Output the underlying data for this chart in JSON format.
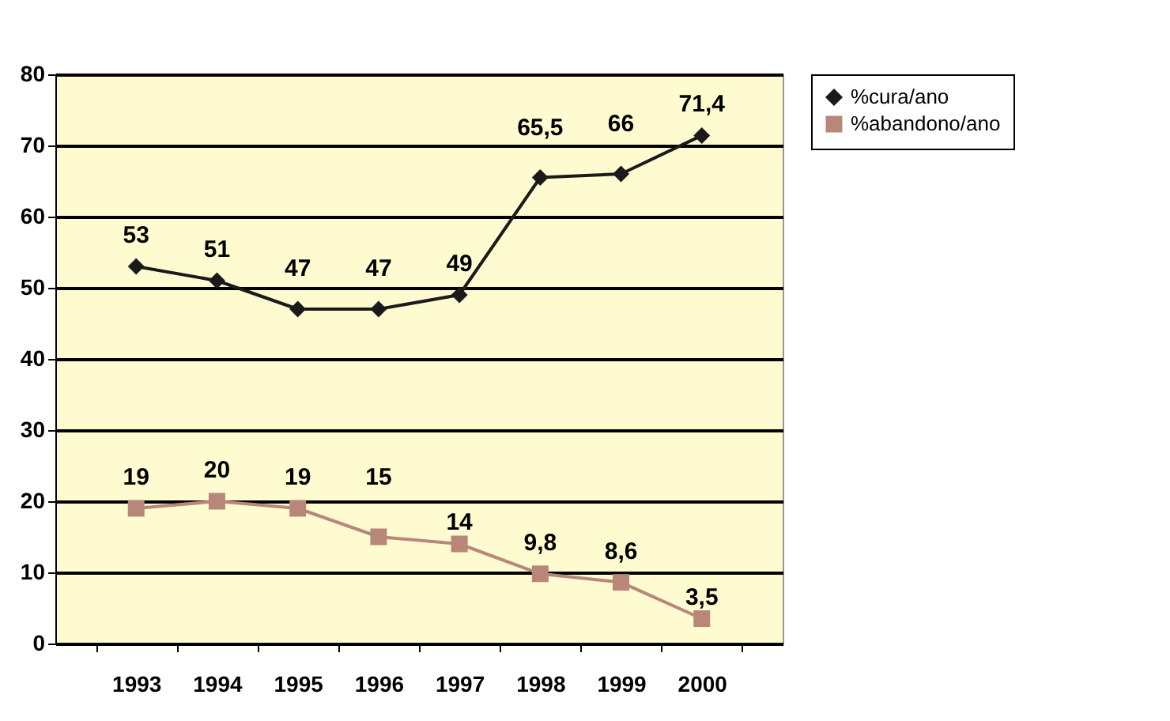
{
  "chart_data": {
    "type": "line",
    "categories": [
      "1993",
      "1994",
      "1995",
      "1996",
      "1997",
      "1998",
      "1999",
      "2000"
    ],
    "series": [
      {
        "name": "%cura/ano",
        "color": "#1a1a1a",
        "marker": "diamond",
        "values": [
          53,
          51,
          47,
          47,
          49,
          65.5,
          66,
          71.4
        ],
        "value_labels": [
          "53",
          "51",
          "47",
          "47",
          "49",
          "65,5",
          "66",
          "71,4"
        ]
      },
      {
        "name": "%abandono/ano",
        "color": "#b8877a",
        "marker": "square",
        "values": [
          19,
          20,
          19,
          15,
          14,
          9.8,
          8.6,
          3.5
        ],
        "value_labels": [
          "19",
          "20",
          "19",
          "15",
          "14",
          "9,8",
          "8,6",
          "3,5"
        ]
      }
    ],
    "ylim": [
      0,
      80
    ],
    "yticks": [
      0,
      10,
      20,
      30,
      40,
      50,
      60,
      70,
      80
    ],
    "grid": "y",
    "legend": "right"
  }
}
